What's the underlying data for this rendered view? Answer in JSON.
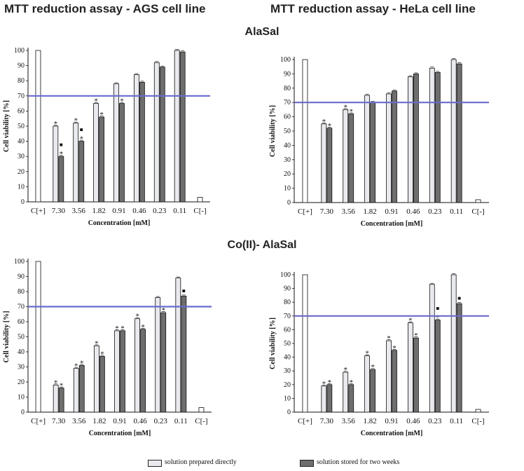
{
  "headings": {
    "ags": "MTT reduction assay - AGS  cell line",
    "hela": "MTT reduction assay - HeLa cell line",
    "alasal": "AlaSal",
    "coalasal": "Co(II)- AlaSal"
  },
  "legend": {
    "direct": "solution prepared directly",
    "stored": "solution stored for two weeks"
  },
  "colors": {
    "direct": "#e9eaee",
    "stored": "#6e6e6e",
    "control": "#ffffff",
    "threshold": "#6a6acd",
    "axis": "#111111"
  },
  "chart_data": [
    {
      "type": "bar",
      "title": "AlaSal - AGS cell line",
      "xlabel": "Concentration  [mM]",
      "ylabel": "Cell viability  [%]",
      "ylim": [
        0,
        100
      ],
      "yticks": [
        0,
        10,
        20,
        30,
        40,
        50,
        60,
        70,
        80,
        90,
        100
      ],
      "threshold": 70,
      "categories": [
        "C[+]",
        "7.30",
        "3.56",
        "1.82",
        "0.91",
        "0.46",
        "0.23",
        "0.11",
        "C[-]"
      ],
      "controls": {
        "C[+]": 100,
        "C[-]": 3
      },
      "series": [
        {
          "name": "solution prepared directly",
          "values": [
            null,
            50,
            52,
            65,
            78,
            84,
            92,
            100,
            null
          ],
          "marks": [
            "",
            "*",
            "*",
            "*",
            "",
            "",
            "",
            "",
            ""
          ]
        },
        {
          "name": "solution stored for two weeks",
          "values": [
            null,
            30,
            40,
            56,
            65,
            79,
            89,
            99,
            null
          ],
          "marks": [
            "",
            "■ *",
            "■ *",
            "*",
            "*",
            "",
            "",
            "",
            ""
          ]
        }
      ]
    },
    {
      "type": "bar",
      "title": "AlaSal - HeLa cell line",
      "xlabel": "Concentration  [mM]",
      "ylabel": "Cell viability  [%]",
      "ylim": [
        0,
        100
      ],
      "yticks": [
        0,
        10,
        20,
        30,
        40,
        50,
        60,
        70,
        80,
        90,
        100
      ],
      "threshold": 70,
      "categories": [
        "C[+]",
        "7.30",
        "3.56",
        "1.82",
        "0.91",
        "0.46",
        "0.23",
        "0.11",
        "C[-]"
      ],
      "controls": {
        "C[+]": 100,
        "C[-]": 2
      },
      "series": [
        {
          "name": "solution prepared directly",
          "values": [
            null,
            55,
            65,
            75,
            76,
            88,
            94,
            100,
            null
          ],
          "marks": [
            "",
            "*",
            "*",
            "",
            "",
            "",
            "",
            "",
            ""
          ]
        },
        {
          "name": "solution stored for two weeks",
          "values": [
            null,
            52,
            62,
            70,
            78,
            90,
            91,
            97,
            null
          ],
          "marks": [
            "",
            "*",
            "*",
            "",
            "",
            "",
            "",
            "",
            ""
          ]
        }
      ]
    },
    {
      "type": "bar",
      "title": "Co(II)-AlaSal - AGS cell line",
      "xlabel": "Concentration  [mM]",
      "ylabel": "Cell viability  [%]",
      "ylim": [
        0,
        100
      ],
      "yticks": [
        0,
        10,
        20,
        30,
        40,
        50,
        60,
        70,
        80,
        90,
        100
      ],
      "threshold": 70,
      "categories": [
        "C[+]",
        "7.30",
        "3.56",
        "1.82",
        "0.91",
        "0.46",
        "0.23",
        "0.11",
        "C[-]"
      ],
      "controls": {
        "C[+]": 100,
        "C[-]": 3
      },
      "series": [
        {
          "name": "solution prepared directly",
          "values": [
            null,
            18,
            29,
            44,
            54,
            62,
            76,
            89,
            null
          ],
          "marks": [
            "",
            "*",
            "*",
            "*",
            "*",
            "*",
            "",
            "",
            ""
          ]
        },
        {
          "name": "solution stored for two weeks",
          "values": [
            null,
            16,
            31,
            37,
            54,
            55,
            66,
            77,
            null
          ],
          "marks": [
            "",
            "*",
            "*",
            "*",
            "*",
            "*",
            "*",
            "■",
            ""
          ]
        }
      ]
    },
    {
      "type": "bar",
      "title": "Co(II)-AlaSal - HeLa cell line",
      "xlabel": "Concentration  [mM]",
      "ylabel": "Cell viability  [%]",
      "ylim": [
        0,
        100
      ],
      "yticks": [
        0,
        10,
        20,
        30,
        40,
        50,
        60,
        70,
        80,
        90,
        100
      ],
      "threshold": 70,
      "categories": [
        "C[+]",
        "7.30",
        "3.56",
        "1.82",
        "0.91",
        "0.46",
        "0.23",
        "0.11",
        "C[-]"
      ],
      "controls": {
        "C[+]": 100,
        "C[-]": 2
      },
      "series": [
        {
          "name": "solution prepared directly",
          "values": [
            null,
            19,
            29,
            41,
            52,
            65,
            93,
            100,
            null
          ],
          "marks": [
            "",
            "*",
            "*",
            "*",
            "*",
            "*",
            "",
            "",
            ""
          ]
        },
        {
          "name": "solution stored for two weeks",
          "values": [
            null,
            20,
            20,
            31,
            45,
            54,
            67,
            79,
            null
          ],
          "marks": [
            "",
            "*",
            "*",
            "*",
            "*",
            "*",
            "■ *",
            "■",
            ""
          ]
        }
      ]
    }
  ]
}
